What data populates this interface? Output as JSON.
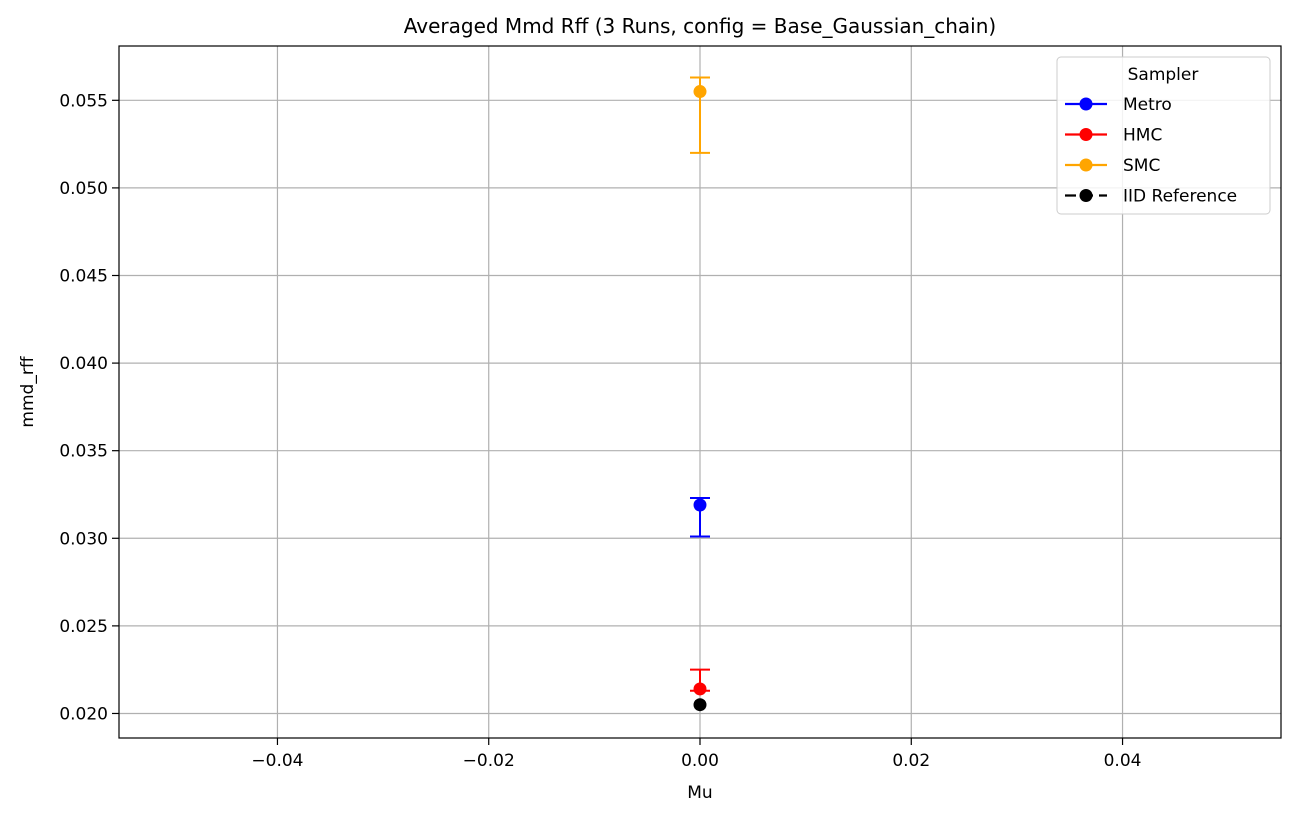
{
  "chart_data": {
    "type": "scatter",
    "title": "Averaged Mmd Rff (3 Runs, config = Base_Gaussian_chain)",
    "xlabel": "Mu",
    "ylabel": "mmd_rff",
    "xlim": [
      -0.055,
      0.055
    ],
    "ylim": [
      0.0186,
      0.0581
    ],
    "xticks": [
      -0.04,
      -0.02,
      0.0,
      0.02,
      0.04
    ],
    "xtick_labels": [
      "−0.04",
      "−0.02",
      "0.00",
      "0.02",
      "0.04"
    ],
    "yticks": [
      0.02,
      0.025,
      0.03,
      0.035,
      0.04,
      0.045,
      0.05,
      0.055
    ],
    "ytick_labels": [
      "0.020",
      "0.025",
      "0.030",
      "0.035",
      "0.040",
      "0.045",
      "0.050",
      "0.055"
    ],
    "grid": true,
    "legend": {
      "title": "Sampler",
      "placement": "top-right"
    },
    "series": [
      {
        "name": "Metro",
        "color": "#0000ff",
        "linestyle": "solid",
        "x": [
          0.0
        ],
        "y": [
          0.0319
        ],
        "err_low": [
          0.0301
        ],
        "err_high": [
          0.0323
        ]
      },
      {
        "name": "HMC",
        "color": "#ff0000",
        "linestyle": "solid",
        "x": [
          0.0
        ],
        "y": [
          0.0214
        ],
        "err_low": [
          0.0213
        ],
        "err_high": [
          0.0225
        ]
      },
      {
        "name": "SMC",
        "color": "#ffa500",
        "linestyle": "solid",
        "x": [
          0.0
        ],
        "y": [
          0.0555
        ],
        "err_low": [
          0.052
        ],
        "err_high": [
          0.0563
        ]
      },
      {
        "name": "IID Reference",
        "color": "#000000",
        "linestyle": "dashed",
        "x": [
          0.0
        ],
        "y": [
          0.0205
        ]
      }
    ]
  }
}
